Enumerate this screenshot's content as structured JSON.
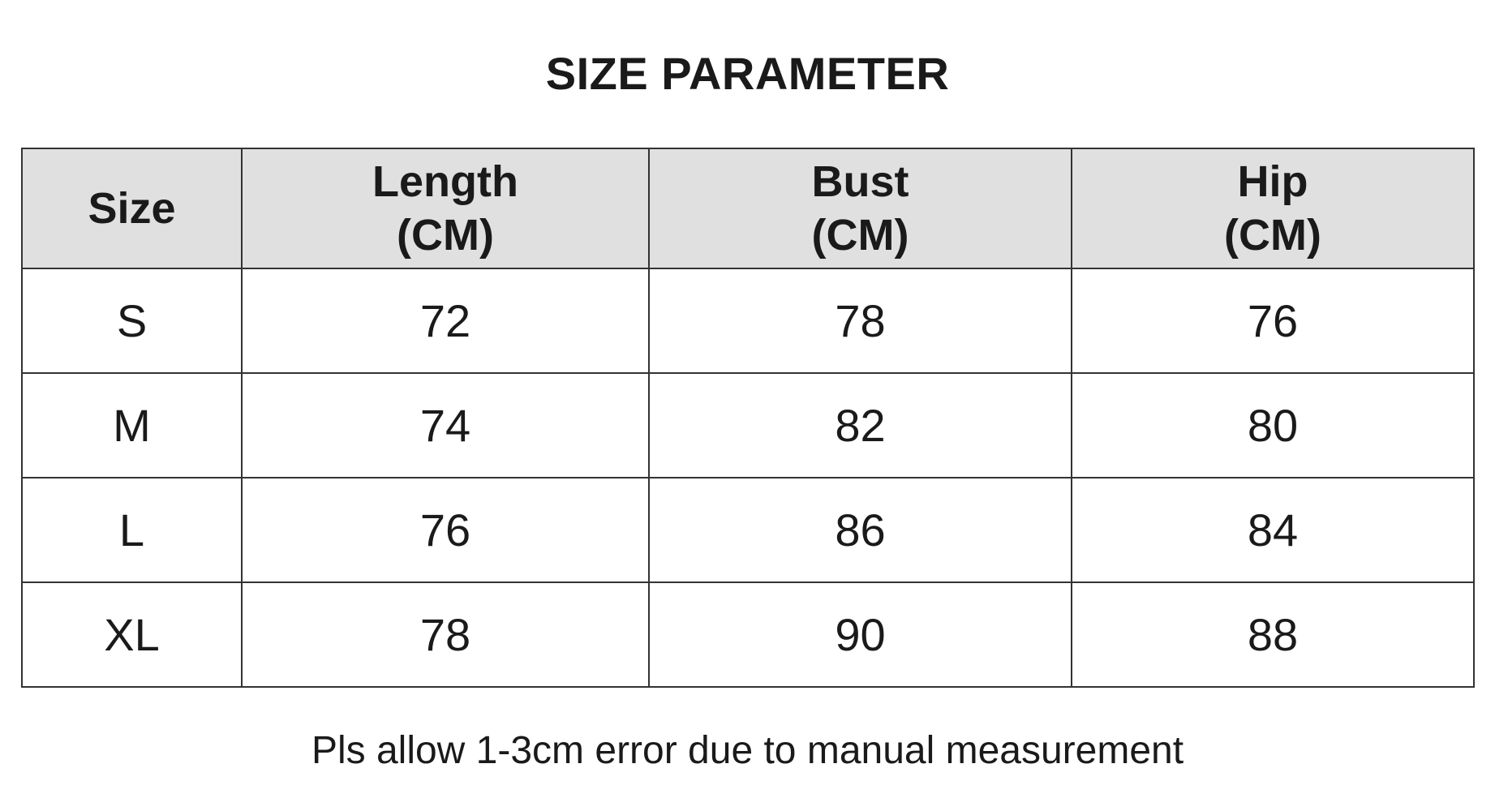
{
  "title": "SIZE PARAMETER",
  "table": {
    "headers": [
      {
        "name": "Size",
        "unit": ""
      },
      {
        "name": "Length",
        "unit": "(CM)"
      },
      {
        "name": "Bust",
        "unit": "(CM)"
      },
      {
        "name": "Hip",
        "unit": "(CM)"
      }
    ],
    "rows": [
      [
        "S",
        "72",
        "78",
        "76"
      ],
      [
        "M",
        "74",
        "82",
        "80"
      ],
      [
        "L",
        "76",
        "86",
        "84"
      ],
      [
        "XL",
        "78",
        "90",
        "88"
      ]
    ]
  },
  "footer": "Pls allow 1-3cm error due to manual measurement",
  "colors": {
    "header_bg": "#e0e0e0",
    "border": "#333333",
    "text": "#1a1a1a"
  }
}
